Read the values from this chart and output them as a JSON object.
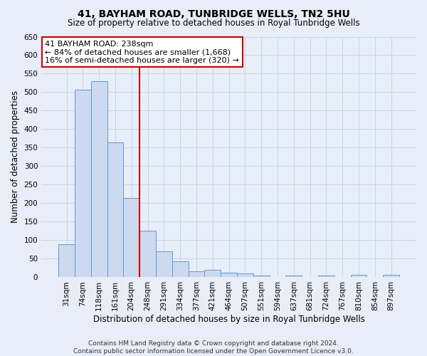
{
  "title": "41, BAYHAM ROAD, TUNBRIDGE WELLS, TN2 5HU",
  "subtitle": "Size of property relative to detached houses in Royal Tunbridge Wells",
  "xlabel": "Distribution of detached houses by size in Royal Tunbridge Wells",
  "ylabel": "Number of detached properties",
  "footnote1": "Contains HM Land Registry data © Crown copyright and database right 2024.",
  "footnote2": "Contains public sector information licensed under the Open Government Licence v3.0.",
  "categories": [
    "31sqm",
    "74sqm",
    "118sqm",
    "161sqm",
    "204sqm",
    "248sqm",
    "291sqm",
    "334sqm",
    "377sqm",
    "421sqm",
    "464sqm",
    "507sqm",
    "551sqm",
    "594sqm",
    "637sqm",
    "681sqm",
    "724sqm",
    "767sqm",
    "810sqm",
    "854sqm",
    "897sqm"
  ],
  "values": [
    90,
    507,
    530,
    365,
    215,
    125,
    70,
    44,
    17,
    20,
    12,
    10,
    5,
    0,
    5,
    0,
    5,
    0,
    6,
    0,
    6
  ],
  "bar_color": "#cdd9ef",
  "bar_edge_color": "#5b9bd5",
  "grid_color": "#c8d4e8",
  "background_color": "#e8eef8",
  "marker_index": 5,
  "marker_color": "#cc0000",
  "annotation_line1": "41 BAYHAM ROAD: 238sqm",
  "annotation_line2": "← 84% of detached houses are smaller (1,668)",
  "annotation_line3": "16% of semi-detached houses are larger (320) →",
  "ylim": [
    0,
    650
  ],
  "yticks": [
    0,
    50,
    100,
    150,
    200,
    250,
    300,
    350,
    400,
    450,
    500,
    550,
    600,
    650
  ],
  "annotation_box_facecolor": "white",
  "annotation_box_edgecolor": "#cc0000",
  "title_fontsize": 10,
  "subtitle_fontsize": 8.5,
  "tick_fontsize": 7.5,
  "ylabel_fontsize": 8.5,
  "xlabel_fontsize": 8.5,
  "footnote_fontsize": 6.5,
  "annotation_fontsize": 8.0
}
